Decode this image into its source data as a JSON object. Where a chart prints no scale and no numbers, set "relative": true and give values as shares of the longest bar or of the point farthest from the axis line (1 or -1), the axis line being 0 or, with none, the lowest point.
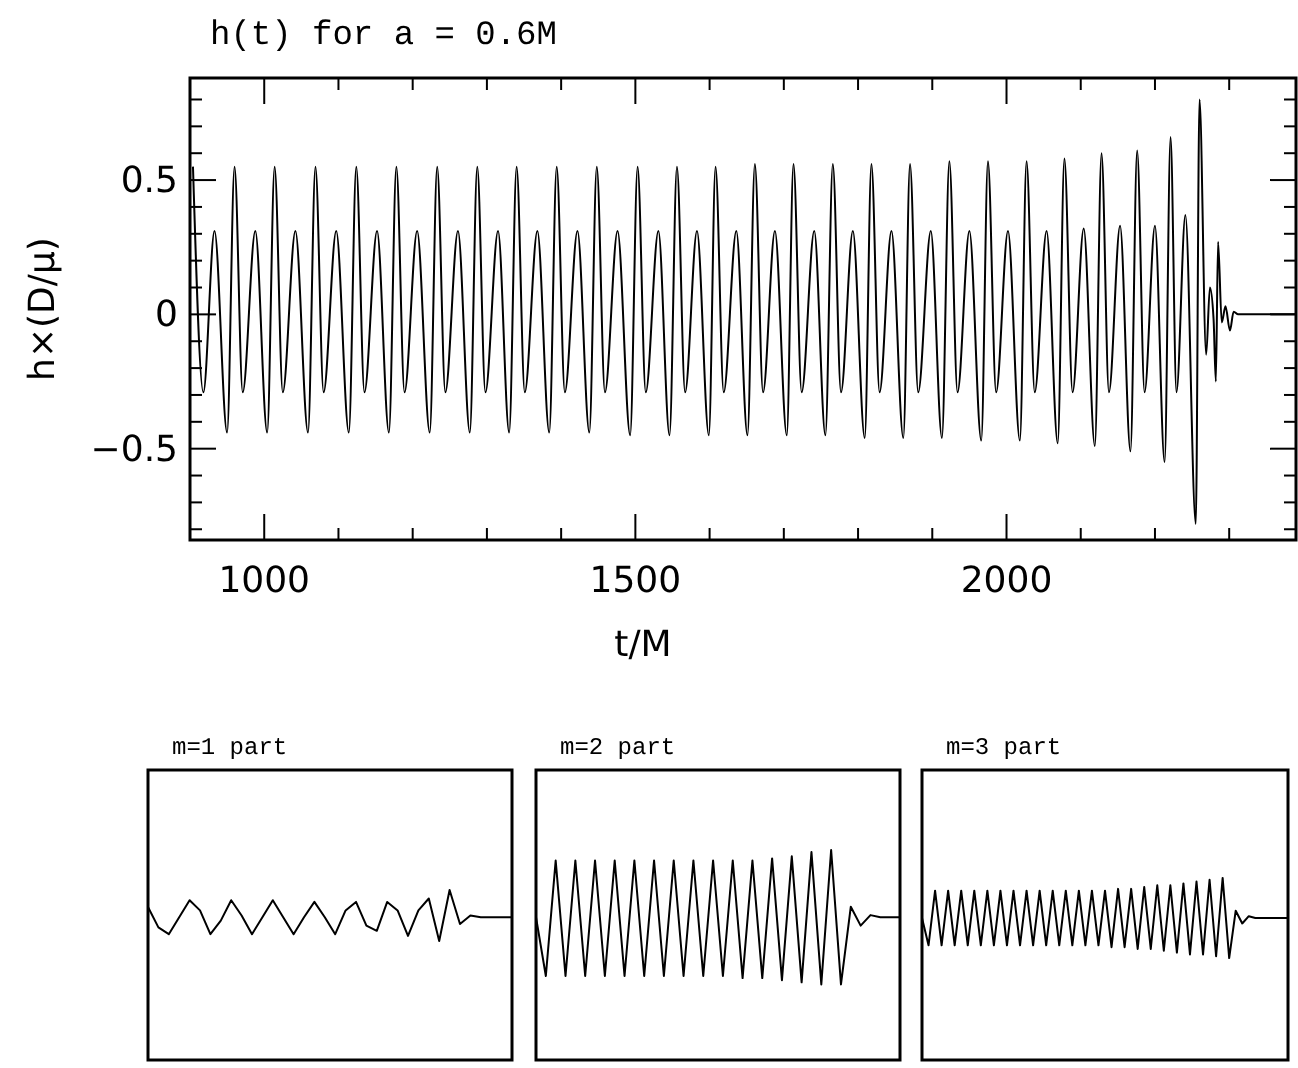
{
  "chart_data": [
    {
      "type": "line",
      "title": "h(t) for a = 0.6M",
      "xlabel": "t/M",
      "ylabel": "h×(D/μ)",
      "color": "#000000",
      "xlim": [
        900,
        2390
      ],
      "ylim": [
        -0.84,
        0.88
      ],
      "xticks": [
        1000,
        {
          "value": 1100,
          "label": null
        },
        {
          "value": 1200,
          "label": null
        },
        {
          "value": 1300,
          "label": null
        },
        {
          "value": 1400,
          "label": null
        },
        1500,
        {
          "value": 1600,
          "label": null
        },
        {
          "value": 1700,
          "label": null
        },
        {
          "value": 1800,
          "label": null
        },
        {
          "value": 1900,
          "label": null
        },
        2000,
        {
          "value": 2100,
          "label": null
        },
        {
          "value": 2200,
          "label": null
        },
        {
          "value": 2300,
          "label": null
        }
      ],
      "yticks": [
        {
          "value": -0.8,
          "label": null
        },
        {
          "value": -0.7,
          "label": null
        },
        {
          "value": -0.6,
          "label": null
        },
        {
          "value": -0.5,
          "label": "−0.5"
        },
        {
          "value": -0.4,
          "label": null
        },
        {
          "value": -0.3,
          "label": null
        },
        {
          "value": -0.2,
          "label": null
        },
        {
          "value": -0.1,
          "label": null
        },
        0,
        {
          "value": 0.1,
          "label": null
        },
        {
          "value": 0.2,
          "label": null
        },
        {
          "value": 0.3,
          "label": null
        },
        {
          "value": 0.4,
          "label": null
        },
        0.5,
        {
          "value": 0.6,
          "label": null
        },
        {
          "value": 0.7,
          "label": null
        },
        {
          "value": 0.8,
          "label": null
        }
      ],
      "x": [
        904,
        918,
        933,
        950,
        960,
        971,
        988,
        1004,
        1014,
        1025,
        1042,
        1059,
        1069,
        1080,
        1097,
        1114,
        1124,
        1135,
        1152,
        1168,
        1178,
        1189,
        1206,
        1223,
        1233,
        1244,
        1261,
        1277,
        1287,
        1298,
        1315,
        1330,
        1340,
        1351,
        1368,
        1384,
        1394,
        1405,
        1422,
        1438,
        1448,
        1459,
        1476,
        1493,
        1503,
        1514,
        1531,
        1546,
        1556,
        1567,
        1583,
        1599,
        1608,
        1619,
        1636,
        1651,
        1661,
        1672,
        1688,
        1704,
        1713,
        1724,
        1741,
        1756,
        1766,
        1777,
        1793,
        1809,
        1818,
        1829,
        1845,
        1861,
        1870,
        1881,
        1898,
        1913,
        1923,
        1934,
        1950,
        1966,
        1975,
        1986,
        2002,
        2018,
        2027,
        2038,
        2054,
        2069,
        2078,
        2089,
        2104,
        2119,
        2128,
        2138,
        2153,
        2167,
        2176,
        2186,
        2200,
        2213,
        2221,
        2229,
        2241,
        2255,
        2260,
        2269,
        2274,
        2279,
        2282,
        2285,
        2290,
        2295,
        2301,
        2306,
        2312,
        2390
      ],
      "values": [
        0.55,
        -0.29,
        0.31,
        -0.44,
        0.55,
        -0.29,
        0.31,
        -0.44,
        0.55,
        -0.29,
        0.31,
        -0.44,
        0.55,
        -0.29,
        0.31,
        -0.44,
        0.55,
        -0.29,
        0.31,
        -0.44,
        0.55,
        -0.29,
        0.31,
        -0.44,
        0.55,
        -0.29,
        0.31,
        -0.44,
        0.55,
        -0.29,
        0.31,
        -0.44,
        0.55,
        -0.29,
        0.31,
        -0.44,
        0.55,
        -0.29,
        0.31,
        -0.44,
        0.55,
        -0.29,
        0.31,
        -0.45,
        0.55,
        -0.29,
        0.31,
        -0.45,
        0.55,
        -0.29,
        0.31,
        -0.45,
        0.55,
        -0.29,
        0.31,
        -0.45,
        0.56,
        -0.29,
        0.31,
        -0.45,
        0.56,
        -0.29,
        0.31,
        -0.45,
        0.56,
        -0.29,
        0.31,
        -0.46,
        0.56,
        -0.29,
        0.31,
        -0.46,
        0.56,
        -0.29,
        0.31,
        -0.46,
        0.57,
        -0.29,
        0.31,
        -0.47,
        0.57,
        -0.29,
        0.31,
        -0.47,
        0.57,
        -0.29,
        0.31,
        -0.48,
        0.58,
        -0.29,
        0.32,
        -0.49,
        0.6,
        -0.29,
        0.33,
        -0.51,
        0.61,
        -0.29,
        0.33,
        -0.55,
        0.66,
        -0.29,
        0.37,
        -0.78,
        0.8,
        -0.15,
        0.1,
        -0.02,
        -0.25,
        0.27,
        -0.03,
        0.03,
        -0.06,
        0.01,
        0,
        0
      ]
    },
    {
      "type": "line",
      "title": "m=1 part",
      "relative": true,
      "color": "#000000",
      "categories": [
        null,
        null,
        null,
        null,
        null,
        null,
        null,
        null,
        null,
        null,
        null,
        null,
        null,
        null,
        null,
        null,
        null,
        null,
        null,
        null,
        null,
        null,
        null,
        null,
        null,
        null,
        null,
        null,
        null,
        null,
        null,
        null,
        null,
        null,
        null,
        null
      ],
      "values": [
        0.9,
        0.78,
        0.74,
        0.84,
        0.94,
        0.88,
        0.74,
        0.82,
        0.94,
        0.85,
        0.74,
        0.84,
        0.94,
        0.84,
        0.74,
        0.84,
        0.93,
        0.84,
        0.74,
        0.88,
        0.93,
        0.79,
        0.76,
        0.93,
        0.88,
        0.73,
        0.88,
        0.95,
        0.7,
        1,
        0.8,
        0.85,
        0.84,
        0.84,
        0.84,
        0.84
      ]
    },
    {
      "type": "line",
      "title": "m=2 part",
      "relative": true,
      "color": "#000000",
      "categories": [
        null,
        null,
        null,
        null,
        null,
        null,
        null,
        null,
        null,
        null,
        null,
        null,
        null,
        null,
        null,
        null,
        null,
        null,
        null,
        null,
        null,
        null,
        null,
        null,
        null,
        null,
        null,
        null,
        null,
        null,
        null,
        null,
        null,
        null,
        null,
        null,
        null,
        null
      ],
      "values": [
        0.68,
        0.4,
        0.95,
        0.4,
        0.95,
        0.4,
        0.95,
        0.4,
        0.95,
        0.4,
        0.95,
        0.4,
        0.95,
        0.4,
        0.95,
        0.4,
        0.95,
        0.4,
        0.95,
        0.4,
        0.95,
        0.39,
        0.95,
        0.39,
        0.96,
        0.38,
        0.97,
        0.37,
        0.99,
        0.36,
        1,
        0.36,
        0.73,
        0.64,
        0.69,
        0.68,
        0.68,
        0.68
      ]
    },
    {
      "type": "line",
      "title": "m=3 part",
      "relative": true,
      "color": "#000000",
      "categories": [
        null,
        null,
        null,
        null,
        null,
        null,
        null,
        null,
        null,
        null,
        null,
        null,
        null,
        null,
        null,
        null,
        null,
        null,
        null,
        null,
        null,
        null,
        null,
        null,
        null,
        null,
        null,
        null,
        null,
        null,
        null,
        null,
        null,
        null,
        null,
        null,
        null,
        null,
        null,
        null,
        null,
        null,
        null,
        null,
        null,
        null,
        null,
        null,
        null,
        null,
        null,
        null,
        null,
        null,
        null,
        null,
        null
      ],
      "values": [
        0.78,
        0.63,
        0.93,
        0.63,
        0.93,
        0.63,
        0.93,
        0.63,
        0.93,
        0.63,
        0.93,
        0.63,
        0.93,
        0.63,
        0.93,
        0.63,
        0.93,
        0.63,
        0.93,
        0.63,
        0.93,
        0.63,
        0.93,
        0.63,
        0.93,
        0.63,
        0.93,
        0.63,
        0.93,
        0.62,
        0.94,
        0.62,
        0.94,
        0.61,
        0.95,
        0.61,
        0.96,
        0.6,
        0.96,
        0.59,
        0.97,
        0.58,
        0.98,
        0.58,
        0.99,
        0.57,
        1,
        0.56,
        0.82,
        0.75,
        0.79,
        0.78,
        0.78,
        0.78,
        0.78,
        0.78,
        0.78
      ]
    }
  ]
}
